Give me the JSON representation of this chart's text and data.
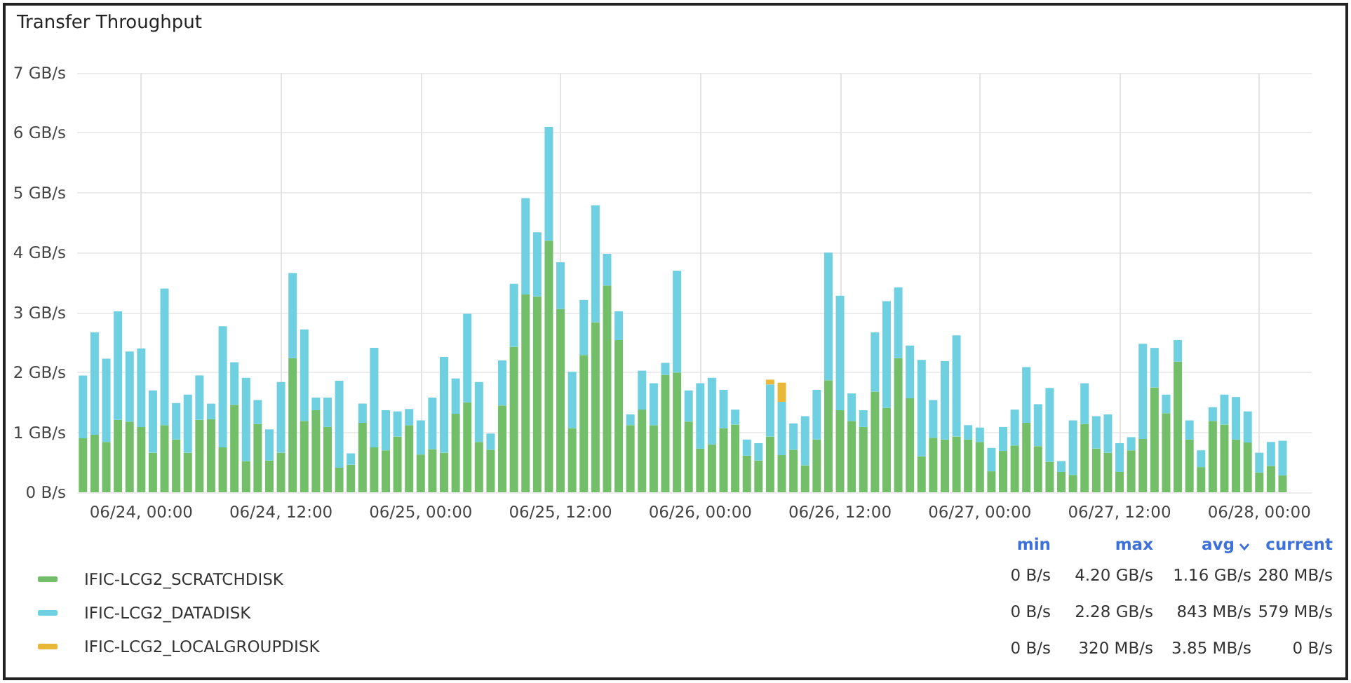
{
  "chart_data": {
    "type": "bar",
    "title": "Transfer Throughput",
    "stacked": true,
    "x": [
      "--06-23T19:00",
      "--06-23T20:00",
      "--06-23T21:00",
      "--06-23T22:00",
      "--06-23T23:00",
      "--06-24T00:00",
      "--06-24T01:00",
      "--06-24T02:00",
      "--06-24T03:00",
      "--06-24T04:00",
      "--06-24T05:00",
      "--06-24T06:00",
      "--06-24T07:00",
      "--06-24T08:00",
      "--06-24T09:00",
      "--06-24T10:00",
      "--06-24T11:00",
      "--06-24T12:00",
      "--06-24T13:00",
      "--06-24T14:00",
      "--06-24T15:00",
      "--06-24T16:00",
      "--06-24T17:00",
      "--06-24T18:00",
      "--06-24T19:00",
      "--06-24T20:00",
      "--06-24T21:00",
      "--06-24T22:00",
      "--06-24T23:00",
      "--06-25T00:00",
      "--06-25T01:00",
      "--06-25T02:00",
      "--06-25T03:00",
      "--06-25T04:00",
      "--06-25T05:00",
      "--06-25T06:00",
      "--06-25T07:00",
      "--06-25T08:00",
      "--06-25T09:00",
      "--06-25T10:00",
      "--06-25T11:00",
      "--06-25T12:00",
      "--06-25T13:00",
      "--06-25T14:00",
      "--06-25T15:00",
      "--06-25T16:00",
      "--06-25T17:00",
      "--06-25T18:00",
      "--06-25T19:00",
      "--06-25T20:00",
      "--06-25T21:00",
      "--06-25T22:00",
      "--06-25T23:00",
      "--06-26T00:00",
      "--06-26T01:00",
      "--06-26T02:00",
      "--06-26T03:00",
      "--06-26T04:00",
      "--06-26T05:00",
      "--06-26T06:00",
      "--06-26T07:00",
      "--06-26T08:00",
      "--06-26T09:00",
      "--06-26T10:00",
      "--06-26T11:00",
      "--06-26T12:00",
      "--06-26T13:00",
      "--06-26T14:00",
      "--06-26T15:00",
      "--06-26T16:00",
      "--06-26T17:00",
      "--06-26T18:00",
      "--06-26T19:00",
      "--06-26T20:00",
      "--06-26T21:00",
      "--06-26T22:00",
      "--06-26T23:00",
      "--06-27T00:00",
      "--06-27T01:00",
      "--06-27T02:00",
      "--06-27T03:00",
      "--06-27T04:00",
      "--06-27T05:00",
      "--06-27T06:00",
      "--06-27T07:00",
      "--06-27T08:00",
      "--06-27T09:00",
      "--06-27T10:00",
      "--06-27T11:00",
      "--06-27T12:00",
      "--06-27T13:00",
      "--06-27T14:00",
      "--06-27T15:00",
      "--06-27T16:00",
      "--06-27T17:00",
      "--06-27T18:00",
      "--06-27T19:00",
      "--06-27T20:00",
      "--06-27T21:00",
      "--06-27T22:00",
      "--06-27T23:00",
      "--06-28T00:00",
      "--06-28T01:00",
      "--06-28T02:00"
    ],
    "series": [
      {
        "name": "IFIC-LCG2_SCRATCHDISK",
        "color": "#73bf69",
        "values": [
          0.9,
          0.96,
          0.84,
          1.21,
          1.18,
          1.09,
          0.66,
          1.12,
          0.88,
          0.66,
          1.21,
          1.22,
          0.75,
          1.46,
          0.52,
          1.14,
          0.53,
          0.66,
          2.24,
          1.19,
          1.37,
          1.09,
          0.41,
          0.46,
          1.16,
          0.75,
          0.7,
          0.93,
          1.12,
          0.63,
          0.72,
          0.66,
          1.31,
          1.5,
          0.84,
          0.71,
          1.45,
          2.43,
          3.3,
          3.27,
          4.2,
          3.06,
          1.07,
          2.29,
          2.84,
          3.45,
          2.54,
          1.12,
          1.38,
          1.12,
          1.96,
          2.0,
          1.18,
          0.73,
          0.8,
          1.07,
          1.13,
          0.61,
          0.53,
          0.93,
          0.62,
          0.71,
          0.45,
          0.88,
          1.87,
          1.37,
          1.19,
          1.09,
          1.68,
          1.41,
          2.24,
          1.57,
          0.6,
          0.91,
          0.88,
          0.93,
          0.88,
          0.84,
          0.35,
          0.69,
          0.78,
          1.16,
          0.77,
          0.51,
          0.34,
          0.29,
          1.14,
          0.73,
          0.66,
          0.34,
          0.7,
          0.89,
          1.75,
          1.32,
          2.18,
          0.88,
          0.42,
          1.19,
          1.13,
          0.88,
          0.83,
          0.33,
          0.44,
          0.28
        ]
      },
      {
        "name": "IFIC-LCG2_DATADISK",
        "color": "#6ed0e0",
        "values": [
          1.05,
          1.71,
          1.39,
          1.81,
          1.17,
          1.31,
          1.04,
          2.28,
          0.61,
          0.97,
          0.74,
          0.26,
          2.02,
          0.71,
          1.39,
          0.4,
          0.52,
          1.18,
          1.42,
          1.53,
          0.21,
          0.49,
          1.45,
          0.19,
          0.32,
          1.66,
          0.67,
          0.42,
          0.27,
          0.57,
          0.86,
          1.6,
          0.59,
          1.48,
          1.0,
          0.27,
          0.75,
          1.05,
          1.61,
          1.07,
          1.9,
          0.78,
          0.94,
          0.92,
          1.95,
          0.53,
          0.48,
          0.18,
          0.65,
          0.7,
          0.2,
          1.7,
          0.52,
          1.09,
          1.11,
          0.64,
          0.25,
          0.27,
          0.29,
          0.87,
          0.89,
          0.44,
          0.82,
          0.83,
          2.13,
          1.91,
          0.46,
          0.28,
          0.99,
          1.78,
          1.18,
          0.88,
          1.61,
          0.63,
          1.31,
          1.69,
          0.24,
          0.24,
          0.39,
          0.4,
          0.6,
          0.93,
          0.7,
          1.23,
          0.18,
          0.91,
          0.68,
          0.54,
          0.64,
          0.48,
          0.22,
          1.59,
          0.66,
          0.31,
          0.36,
          0.32,
          0.28,
          0.23,
          0.5,
          0.71,
          0.52,
          0.33,
          0.4,
          0.58
        ]
      },
      {
        "name": "IFIC-LCG2_LOCALGROUPDISK",
        "color": "#eab839",
        "values": [
          null,
          null,
          null,
          null,
          null,
          null,
          null,
          null,
          null,
          null,
          null,
          null,
          null,
          null,
          null,
          null,
          null,
          null,
          null,
          null,
          null,
          null,
          null,
          null,
          null,
          null,
          null,
          null,
          null,
          null,
          null,
          null,
          null,
          null,
          null,
          null,
          null,
          null,
          null,
          null,
          null,
          null,
          null,
          null,
          null,
          null,
          null,
          null,
          null,
          null,
          null,
          null,
          null,
          null,
          null,
          null,
          null,
          null,
          null,
          0.08,
          0.32,
          null,
          null,
          null,
          null,
          null,
          null,
          null,
          null,
          null,
          null,
          null,
          null,
          null,
          null,
          null,
          null,
          null,
          null,
          null,
          null,
          null,
          null,
          null,
          null,
          null,
          null,
          null,
          null,
          null,
          null,
          null,
          null,
          null,
          null,
          null,
          null,
          null,
          null,
          null,
          null,
          null,
          null,
          null
        ]
      }
    ],
    "xlim": [
      "--06-23T18:30",
      "--06-28T04:30"
    ],
    "xticks": [
      {
        "value": "--06-24T00:00",
        "label": "06/24, 00:00"
      },
      {
        "value": "--06-24T12:00",
        "label": "06/24, 12:00"
      },
      {
        "value": "--06-25T00:00",
        "label": "06/25, 00:00"
      },
      {
        "value": "--06-25T12:00",
        "label": "06/25, 12:00"
      },
      {
        "value": "--06-26T00:00",
        "label": "06/26, 00:00"
      },
      {
        "value": "--06-26T12:00",
        "label": "06/26, 12:00"
      },
      {
        "value": "--06-27T00:00",
        "label": "06/27, 00:00"
      },
      {
        "value": "--06-27T12:00",
        "label": "06/27, 12:00"
      },
      {
        "value": "--06-28T00:00",
        "label": "06/28, 00:00"
      }
    ],
    "ylim": [
      0,
      7
    ],
    "yticks": [
      {
        "value": 0,
        "label": "0 B/s"
      },
      {
        "value": 1,
        "label": "1 GB/s"
      },
      {
        "value": 2,
        "label": "2 GB/s"
      },
      {
        "value": 3,
        "label": "3 GB/s"
      },
      {
        "value": 4,
        "label": "4 GB/s"
      },
      {
        "value": 5,
        "label": "5 GB/s"
      },
      {
        "value": 6,
        "label": "6 GB/s"
      },
      {
        "value": 7,
        "label": "7 GB/s"
      }
    ],
    "grid": true,
    "legend": "bottom left",
    "annotations": [
      "min",
      "max",
      "avg",
      "current",
      "0 B/s",
      "4.20 GB/s",
      "1.16 GB/s",
      "280 MB/s",
      "0 B/s",
      "2.28 GB/s",
      "843 MB/s",
      "579 MB/s",
      "0 B/s",
      "320 MB/s",
      "3.85 MB/s",
      "0 B/s"
    ]
  }
}
